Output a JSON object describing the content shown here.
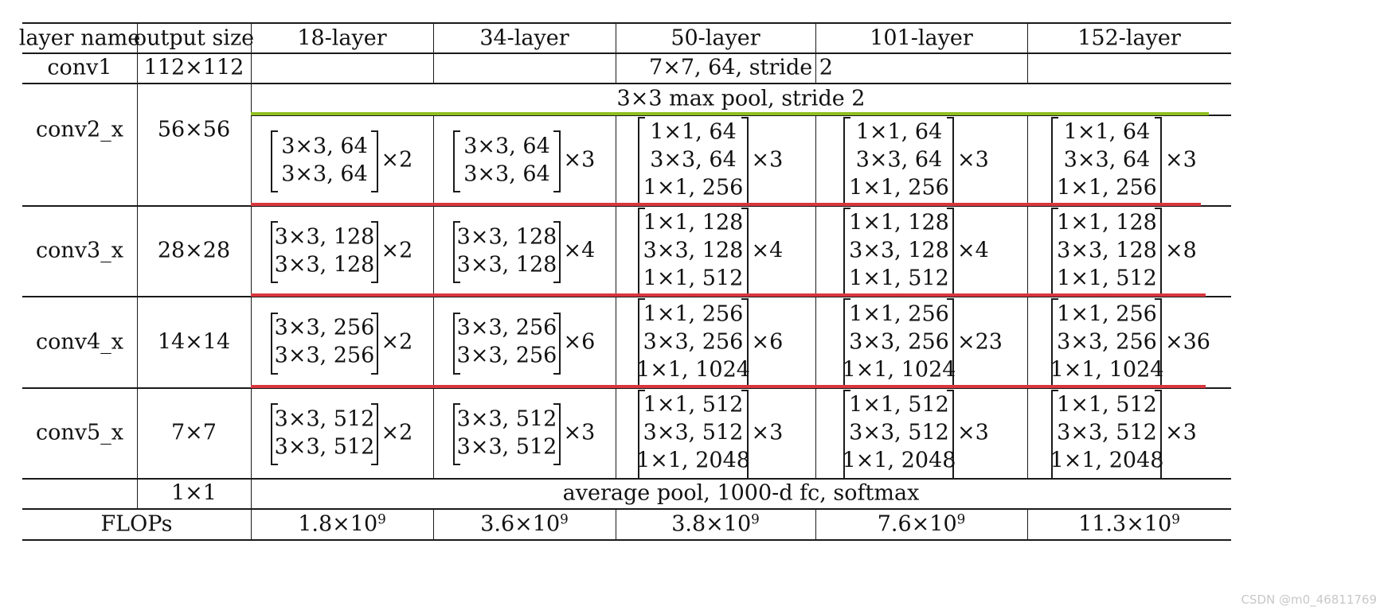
{
  "table": {
    "headers": [
      "layer name",
      "output size",
      "18-layer",
      "34-layer",
      "50-layer",
      "101-layer",
      "152-layer"
    ],
    "conv1": {
      "name": "conv1",
      "size": "112×112",
      "spec": "7×7, 64, stride 2"
    },
    "pool": {
      "spec": "3×3 max pool, stride 2"
    },
    "blocks": [
      {
        "name": "conv2_x",
        "size": "56×56",
        "cells": [
          {
            "rows": [
              "3×3, 64",
              "3×3, 64"
            ],
            "mult": "×2"
          },
          {
            "rows": [
              "3×3, 64",
              "3×3, 64"
            ],
            "mult": "×3"
          },
          {
            "rows": [
              "1×1, 64",
              "3×3, 64",
              "1×1, 256"
            ],
            "mult": "×3"
          },
          {
            "rows": [
              "1×1, 64",
              "3×3, 64",
              "1×1, 256"
            ],
            "mult": "×3"
          },
          {
            "rows": [
              "1×1, 64",
              "3×3, 64",
              "1×1, 256"
            ],
            "mult": "×3"
          }
        ]
      },
      {
        "name": "conv3_x",
        "size": "28×28",
        "cells": [
          {
            "rows": [
              "3×3, 128",
              "3×3, 128"
            ],
            "mult": "×2"
          },
          {
            "rows": [
              "3×3, 128",
              "3×3, 128"
            ],
            "mult": "×4"
          },
          {
            "rows": [
              "1×1, 128",
              "3×3, 128",
              "1×1, 512"
            ],
            "mult": "×4"
          },
          {
            "rows": [
              "1×1, 128",
              "3×3, 128",
              "1×1, 512"
            ],
            "mult": "×4"
          },
          {
            "rows": [
              "1×1, 128",
              "3×3, 128",
              "1×1, 512"
            ],
            "mult": "×8"
          }
        ]
      },
      {
        "name": "conv4_x",
        "size": "14×14",
        "cells": [
          {
            "rows": [
              "3×3, 256",
              "3×3, 256"
            ],
            "mult": "×2"
          },
          {
            "rows": [
              "3×3, 256",
              "3×3, 256"
            ],
            "mult": "×6"
          },
          {
            "rows": [
              "1×1, 256",
              "3×3, 256",
              "1×1, 1024"
            ],
            "mult": "×6"
          },
          {
            "rows": [
              "1×1, 256",
              "3×3, 256",
              "1×1, 1024"
            ],
            "mult": "×23"
          },
          {
            "rows": [
              "1×1, 256",
              "3×3, 256",
              "1×1, 1024"
            ],
            "mult": "×36"
          }
        ]
      },
      {
        "name": "conv5_x",
        "size": "7×7",
        "cells": [
          {
            "rows": [
              "3×3, 512",
              "3×3, 512"
            ],
            "mult": "×2"
          },
          {
            "rows": [
              "3×3, 512",
              "3×3, 512"
            ],
            "mult": "×3"
          },
          {
            "rows": [
              "1×1, 512",
              "3×3, 512",
              "1×1, 2048"
            ],
            "mult": "×3"
          },
          {
            "rows": [
              "1×1, 512",
              "3×3, 512",
              "1×1, 2048"
            ],
            "mult": "×3"
          },
          {
            "rows": [
              "1×1, 512",
              "3×3, 512",
              "1×1, 2048"
            ],
            "mult": "×3"
          }
        ]
      }
    ],
    "final": {
      "size": "1×1",
      "spec": "average pool, 1000-d fc, softmax"
    },
    "flops": {
      "label": "FLOPs",
      "values": [
        {
          "mantissa": "1.8×10",
          "exp": "9"
        },
        {
          "mantissa": "3.6×10",
          "exp": "9"
        },
        {
          "mantissa": "3.8×10",
          "exp": "9"
        },
        {
          "mantissa": "7.6×10",
          "exp": "9"
        },
        {
          "mantissa": "11.3×10",
          "exp": "9"
        }
      ]
    }
  },
  "annotations": {
    "green_line_color": "#8fbf1f",
    "red_line_color": "#d9363e"
  },
  "watermark": "CSDN @m0_46811769"
}
